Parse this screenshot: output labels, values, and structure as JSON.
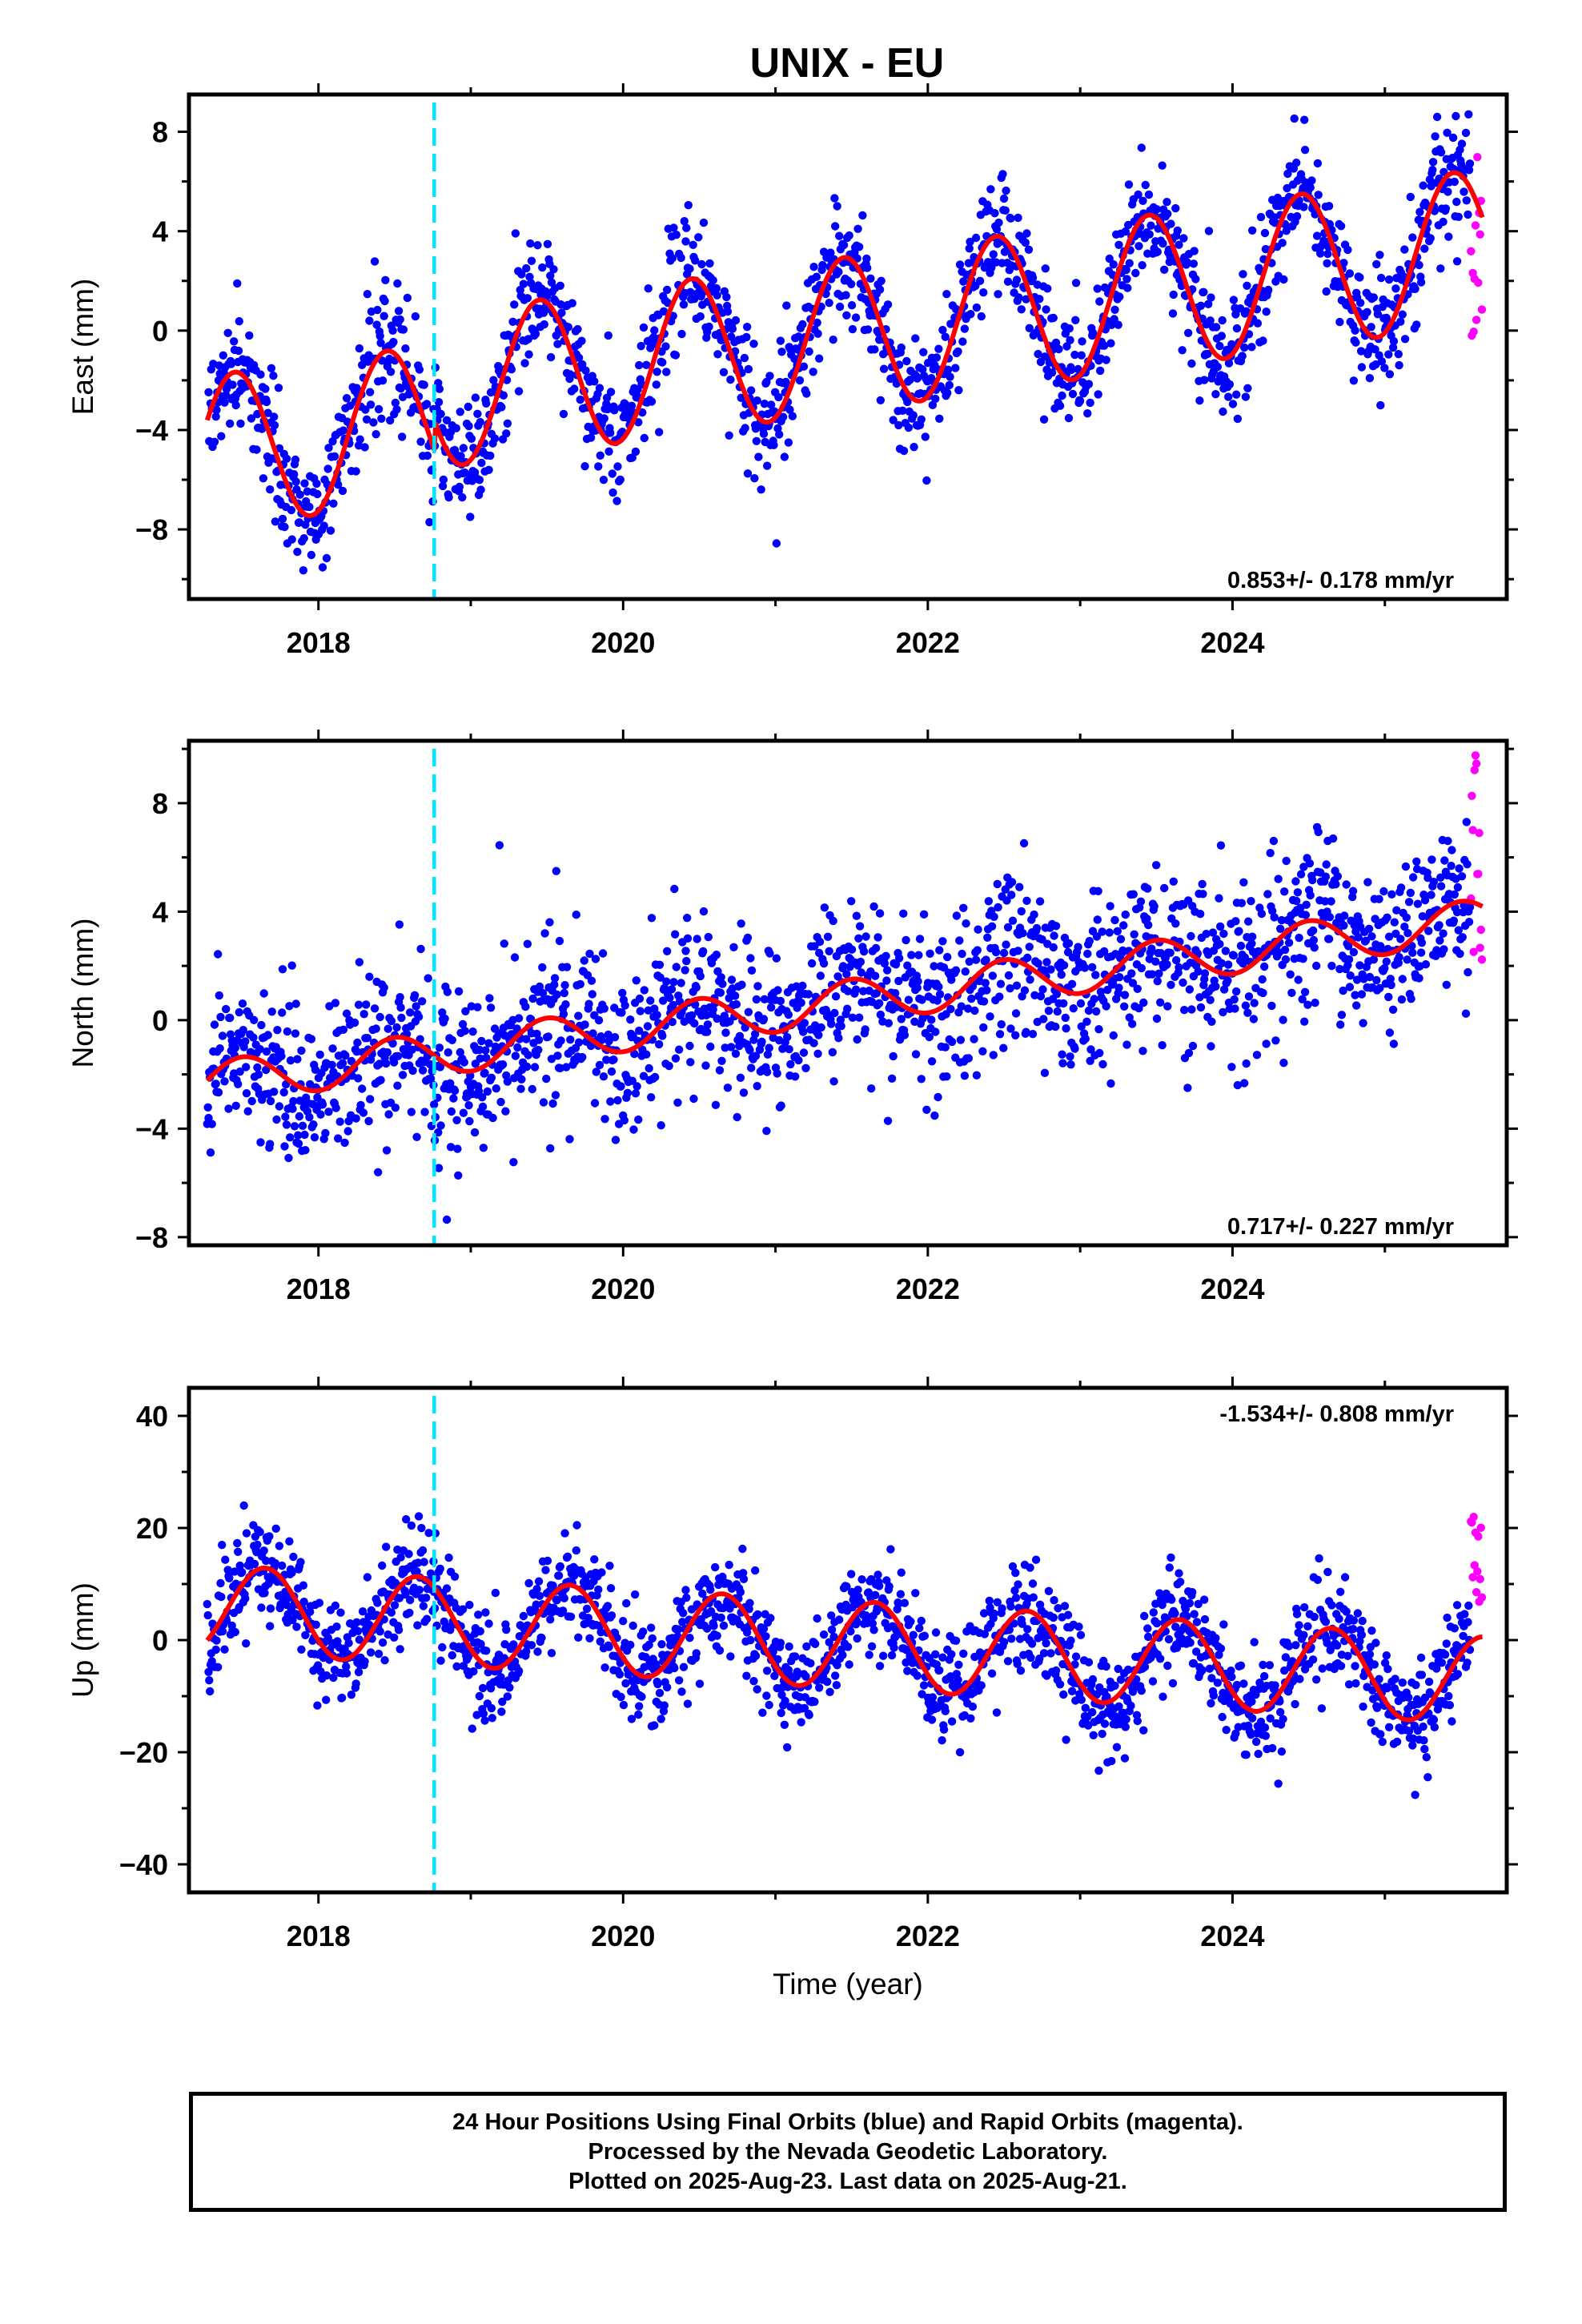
{
  "title": "UNIX - EU",
  "colors": {
    "final_orbits": "#0000ff",
    "rapid_orbits": "#ff00ff",
    "model": "#ff0000",
    "event_line": "#00e5ff"
  },
  "chart_data": [
    {
      "type": "scatter",
      "component": "East",
      "ylabel": "East (mm)",
      "xlim": [
        2017.15,
        2025.8
      ],
      "ylim": [
        -10.8,
        9.5
      ],
      "yticks": [
        -8,
        -4,
        0,
        4,
        8
      ],
      "xticks": [
        2018,
        2020,
        2022,
        2024
      ],
      "trend_label": "0.853+/- 0.178 mm/yr",
      "trend_mm_per_yr": 0.853,
      "trend_sigma": 0.178,
      "event_line_x": 2018.76,
      "model_params": {
        "offset_at_2017_3": -4.9,
        "annual_amplitude": 3.1,
        "peak_phase": 0.45,
        "step_at_event": 1.2
      },
      "scatter_sigma": 1.2,
      "rapid_orbit_range": [
        -0.2,
        7.0
      ]
    },
    {
      "type": "scatter",
      "component": "North",
      "ylabel": "North (mm)",
      "xlim": [
        2017.15,
        2025.8
      ],
      "ylim": [
        -8.3,
        10.3
      ],
      "yticks": [
        -8,
        -4,
        0,
        4,
        8
      ],
      "xticks": [
        2018,
        2020,
        2022,
        2024
      ],
      "trend_label": "0.717+/- 0.227 mm/yr",
      "trend_mm_per_yr": 0.717,
      "trend_sigma": 0.227,
      "event_line_x": 2018.76,
      "model_params": {
        "offset_at_2017_3": -2.3,
        "annual_amplitude": 0.8,
        "peak_phase": 0.5
      },
      "scatter_sigma": 1.5,
      "rapid_orbit_range": [
        2.0,
        10.0
      ]
    },
    {
      "type": "scatter",
      "component": "Up",
      "ylabel": "Up (mm)",
      "xlabel": "Time (year)",
      "xlim": [
        2017.15,
        2025.8
      ],
      "ylim": [
        -45,
        45
      ],
      "yticks": [
        -40,
        -20,
        0,
        20,
        40
      ],
      "xticks": [
        2018,
        2020,
        2022,
        2024
      ],
      "trend_label": "-1.534+/- 0.808 mm/yr",
      "trend_mm_per_yr": -1.534,
      "trend_sigma": 0.808,
      "event_line_x": 2018.76,
      "model_params": {
        "offset_at_2017_3": 5.6,
        "annual_amplitude": 7.8,
        "peak_phase": 0.65
      },
      "scatter_sigma": 4.5,
      "rapid_orbit_range": [
        6.0,
        22.0
      ]
    }
  ],
  "footer": {
    "line1": "24 Hour Positions Using Final Orbits (blue) and Rapid Orbits (magenta).",
    "line2": "Processed by the Nevada Geodetic Laboratory.",
    "line3": "Plotted on 2025-Aug-23. Last data on 2025-Aug-21."
  }
}
